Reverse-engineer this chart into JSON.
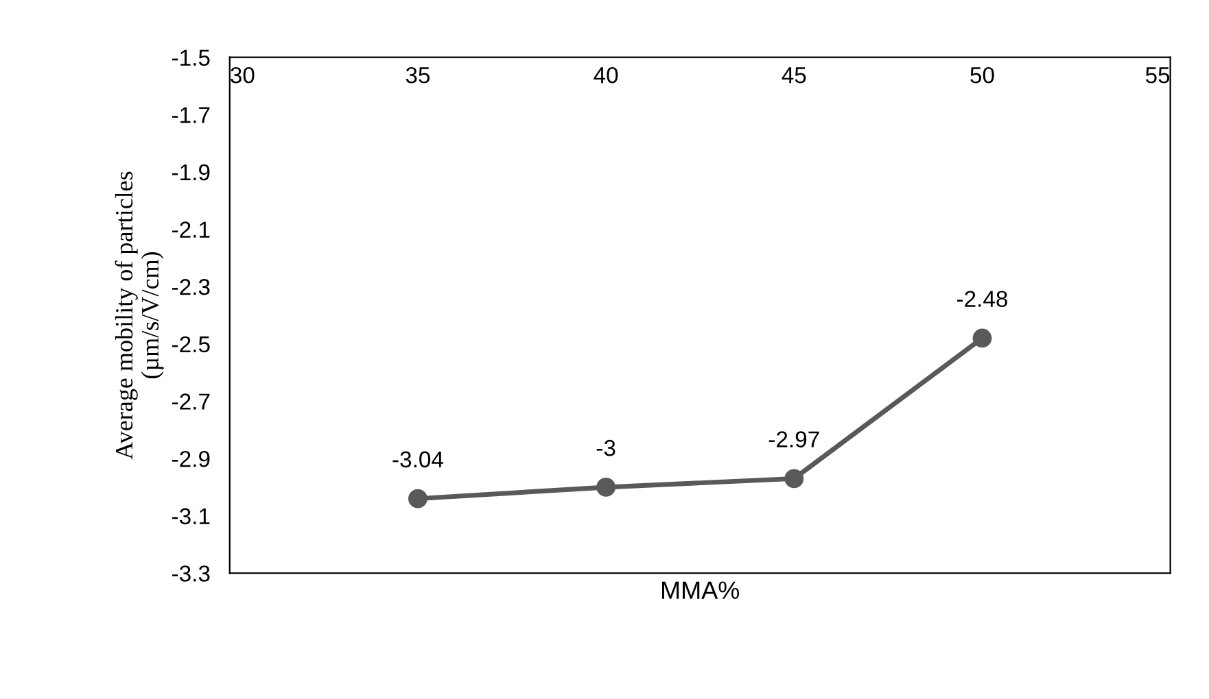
{
  "chart_data": {
    "type": "line",
    "xlabel": "MMA%",
    "ylabel": "Average mobility of particles\n(µm/s/V/cm)",
    "x": [
      35,
      40,
      45,
      50
    ],
    "series": [
      {
        "color": "#595959",
        "values": [
          -3.04,
          -3.0,
          -2.97,
          -2.48
        ]
      }
    ],
    "xlim": [
      30,
      55
    ],
    "xticks": [
      30,
      35,
      40,
      45,
      50,
      55
    ],
    "ylim": [
      -3.3,
      -1.5
    ],
    "yticks": [
      -3.3,
      -3.1,
      -2.9,
      -2.7,
      -2.5,
      -2.3,
      -2.1,
      -1.9,
      -1.7,
      -1.5
    ],
    "marker": "circle",
    "line_style": "solid",
    "grid": false,
    "data_labels": true
  }
}
